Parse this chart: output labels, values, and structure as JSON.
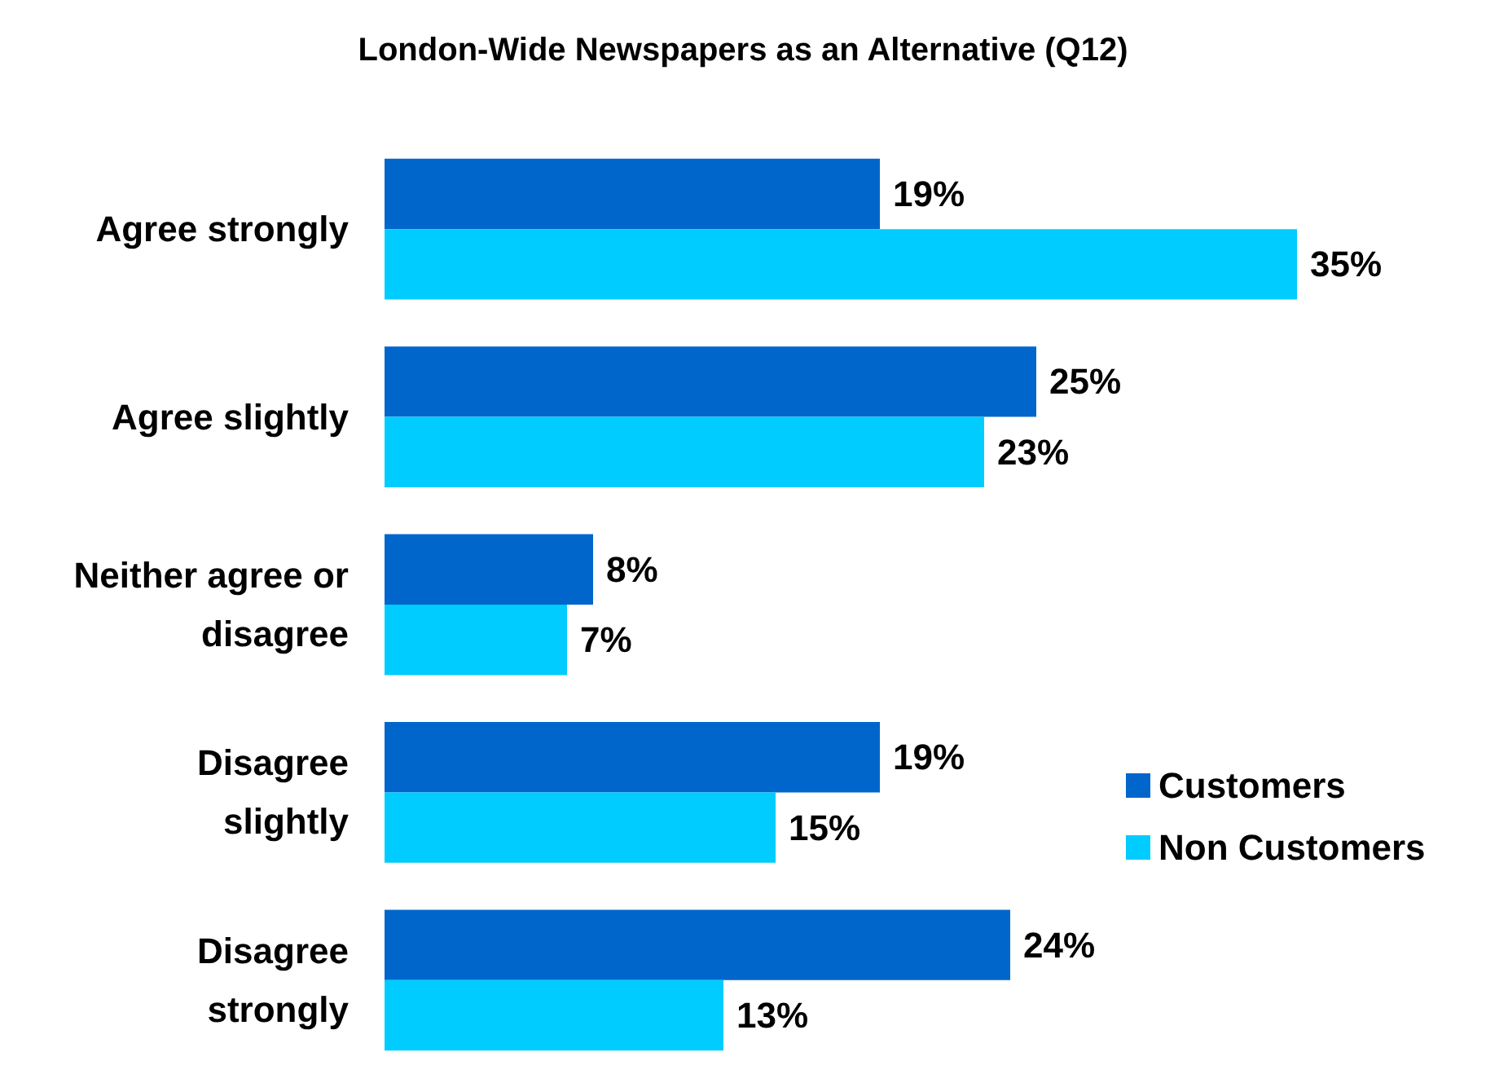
{
  "chart_data": {
    "type": "bar",
    "orientation": "horizontal",
    "title": "London-Wide Newspapers as an Alternative (Q12)",
    "categories": [
      "Agree strongly",
      "Agree slightly",
      "Neither agree or\ndisagree",
      "Disagree\nslightly",
      "Disagree\nstrongly"
    ],
    "series": [
      {
        "name": "Customers",
        "color": "#0066cc",
        "values": [
          19,
          25,
          8,
          19,
          24
        ],
        "value_labels": [
          "19%",
          "25%",
          "8%",
          "19%",
          "24%"
        ]
      },
      {
        "name": "Non Customers",
        "color": "#00ccff",
        "values": [
          35,
          23,
          7,
          15,
          13
        ],
        "value_labels": [
          "35%",
          "23%",
          "7%",
          "15%",
          "13%"
        ]
      }
    ],
    "legend": "right",
    "grid": false
  }
}
